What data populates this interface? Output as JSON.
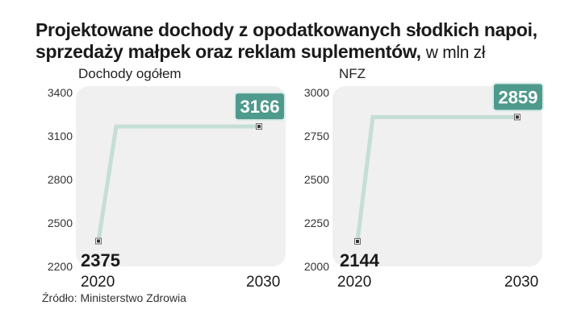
{
  "title": {
    "line1": "Projektowane dochody z opodatkowanych słodkich napoi,",
    "line2_bold": "sprzedaży  małpek oraz reklam suplementów,",
    "line2_unit": "w mln zł"
  },
  "source": "Źródło: Ministerstwo Zdrowia",
  "colors": {
    "line": "#c5ded6",
    "badge": "#4e9a8c",
    "panel": "#f0f0f0",
    "text": "#1a1a1a"
  },
  "chart_data": [
    {
      "type": "line",
      "title": "Dochody ogółem",
      "x": [
        "2020",
        "2030"
      ],
      "values": [
        2375,
        3166
      ],
      "ylim": [
        2200,
        3400
      ],
      "yticks": [
        2200,
        2500,
        2800,
        3100,
        3400
      ],
      "ytick_labels": [
        "2200",
        "2500",
        "2800",
        "3100",
        "3400"
      ],
      "value_labels": [
        "2375",
        "3166"
      ]
    },
    {
      "type": "line",
      "title": "NFZ",
      "x": [
        "2020",
        "2030"
      ],
      "values": [
        2144,
        2859
      ],
      "ylim": [
        2000,
        3000
      ],
      "yticks": [
        2000,
        2250,
        2500,
        2750,
        3000
      ],
      "ytick_labels": [
        "2000",
        "2250",
        "2500",
        "2750",
        "3000"
      ],
      "value_labels": [
        "2144",
        "2859"
      ]
    }
  ]
}
